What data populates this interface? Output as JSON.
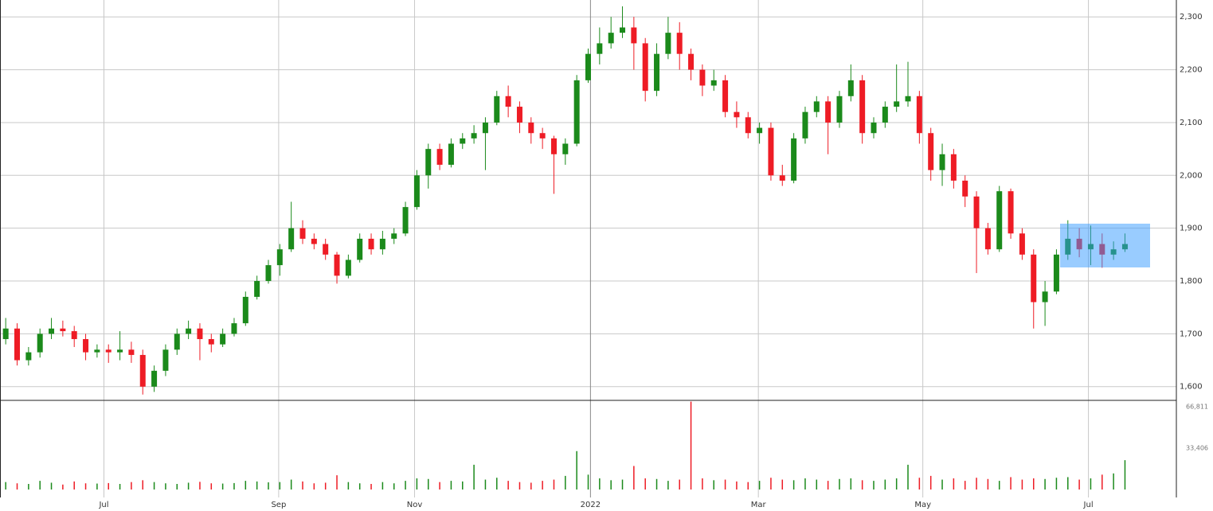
{
  "chart_data": {
    "type": "candlestick",
    "xlim": [
      -0.5,
      102.5
    ],
    "xticks": [
      {
        "value": 8.6,
        "label": "Jul"
      },
      {
        "value": 23.9,
        "label": "Sep"
      },
      {
        "value": 35.8,
        "label": "Nov"
      },
      {
        "value": 51.2,
        "label": "2022"
      },
      {
        "value": 65.9,
        "label": "Mar"
      },
      {
        "value": 80.3,
        "label": "May"
      },
      {
        "value": 94.8,
        "label": "Jul"
      }
    ],
    "ylim": [
      1574,
      2332
    ],
    "yticks": [
      {
        "value": 1600,
        "label": "1,600"
      },
      {
        "value": 1700,
        "label": "1,700"
      },
      {
        "value": 1800,
        "label": "1,800"
      },
      {
        "value": 1900,
        "label": "1,900"
      },
      {
        "value": 2000,
        "label": "2,000"
      },
      {
        "value": 2100,
        "label": "2,100"
      },
      {
        "value": 2200,
        "label": "2,200"
      },
      {
        "value": 2300,
        "label": "2,300"
      }
    ],
    "up_color": "#1b8a1b",
    "down_color": "#ee1c25",
    "grid": true,
    "open": [
      1690,
      1710,
      1650,
      1665,
      1700,
      1710,
      1705,
      1690,
      1665,
      1670,
      1665,
      1670,
      1660,
      1600,
      1630,
      1670,
      1700,
      1710,
      1690,
      1680,
      1700,
      1720,
      1770,
      1800,
      1830,
      1860,
      1900,
      1880,
      1870,
      1850,
      1810,
      1840,
      1880,
      1860,
      1880,
      1890,
      1940,
      2000,
      2050,
      2020,
      2060,
      2070,
      2080,
      2100,
      2150,
      2130,
      2100,
      2080,
      2070,
      2040,
      2060,
      2180,
      2230,
      2250,
      2270,
      2280,
      2250,
      2160,
      2230,
      2270,
      2230,
      2200,
      2170,
      2180,
      2120,
      2110,
      2080,
      2090,
      2000,
      1990,
      2070,
      2120,
      2140,
      2100,
      2150,
      2180,
      2080,
      2100,
      2130,
      2140,
      2150,
      2080,
      2010,
      2040,
      1990,
      1960,
      1900,
      1860,
      1970,
      1890,
      1850,
      1760,
      1780,
      1850,
      1880,
      1860,
      1870,
      1850,
      1860
    ],
    "high": [
      1730,
      1720,
      1675,
      1710,
      1730,
      1725,
      1715,
      1700,
      1680,
      1680,
      1705,
      1685,
      1670,
      1640,
      1680,
      1710,
      1725,
      1720,
      1700,
      1710,
      1730,
      1780,
      1810,
      1840,
      1870,
      1950,
      1915,
      1890,
      1880,
      1855,
      1850,
      1890,
      1890,
      1895,
      1900,
      1950,
      2010,
      2060,
      2060,
      2070,
      2080,
      2095,
      2110,
      2160,
      2170,
      2140,
      2110,
      2090,
      2075,
      2070,
      2190,
      2240,
      2280,
      2300,
      2320,
      2300,
      2260,
      2250,
      2300,
      2290,
      2240,
      2210,
      2200,
      2190,
      2140,
      2120,
      2100,
      2100,
      2020,
      2080,
      2130,
      2150,
      2150,
      2160,
      2210,
      2190,
      2110,
      2140,
      2210,
      2215,
      2160,
      2090,
      2060,
      2050,
      2000,
      1970,
      1910,
      1980,
      1975,
      1900,
      1860,
      1800,
      1860,
      1915,
      1900,
      1905,
      1890,
      1875,
      1890
    ],
    "low": [
      1680,
      1640,
      1640,
      1655,
      1690,
      1695,
      1675,
      1650,
      1655,
      1645,
      1650,
      1645,
      1585,
      1590,
      1620,
      1660,
      1690,
      1650,
      1665,
      1675,
      1695,
      1715,
      1765,
      1795,
      1810,
      1855,
      1870,
      1860,
      1840,
      1795,
      1805,
      1835,
      1850,
      1850,
      1870,
      1885,
      1935,
      1975,
      2010,
      2015,
      2050,
      2060,
      2010,
      2095,
      2110,
      2080,
      2060,
      2050,
      1965,
      2020,
      2055,
      2175,
      2210,
      2240,
      2260,
      2200,
      2140,
      2150,
      2220,
      2200,
      2180,
      2150,
      2160,
      2110,
      2090,
      2070,
      2060,
      1990,
      1980,
      1985,
      2060,
      2110,
      2040,
      2090,
      2140,
      2060,
      2070,
      2090,
      2120,
      2130,
      2060,
      1990,
      1980,
      1975,
      1940,
      1815,
      1850,
      1855,
      1880,
      1840,
      1710,
      1715,
      1775,
      1840,
      1845,
      1830,
      1825,
      1840,
      1855
    ],
    "close": [
      1710,
      1650,
      1665,
      1700,
      1710,
      1705,
      1690,
      1665,
      1670,
      1665,
      1670,
      1660,
      1600,
      1630,
      1670,
      1700,
      1710,
      1690,
      1680,
      1700,
      1720,
      1770,
      1800,
      1830,
      1860,
      1900,
      1880,
      1870,
      1850,
      1810,
      1840,
      1880,
      1860,
      1880,
      1890,
      1940,
      2000,
      2050,
      2020,
      2060,
      2070,
      2080,
      2100,
      2150,
      2130,
      2100,
      2080,
      2070,
      2040,
      2060,
      2180,
      2230,
      2250,
      2270,
      2280,
      2250,
      2160,
      2230,
      2270,
      2230,
      2200,
      2170,
      2180,
      2120,
      2110,
      2080,
      2090,
      2000,
      1990,
      2070,
      2120,
      2140,
      2100,
      2150,
      2180,
      2080,
      2100,
      2130,
      2140,
      2150,
      2080,
      2010,
      2040,
      1990,
      1960,
      1900,
      1860,
      1970,
      1890,
      1850,
      1760,
      1780,
      1850,
      1880,
      1860,
      1870,
      1850,
      1860,
      1870
    ],
    "volume": {
      "ylim": [
        0,
        72000
      ],
      "yticks": [
        {
          "value": 66811,
          "label": "66,811"
        },
        {
          "value": 33406,
          "label": "33,406"
        }
      ],
      "values": [
        6000,
        5000,
        4500,
        7000,
        5500,
        4000,
        6500,
        5000,
        4800,
        5200,
        4500,
        6000,
        7500,
        6000,
        5000,
        4500,
        5500,
        6200,
        5000,
        4800,
        5200,
        7000,
        6500,
        5800,
        6000,
        8000,
        6500,
        5000,
        5500,
        11500,
        6000,
        5000,
        4500,
        6000,
        5000,
        7000,
        9000,
        8500,
        6000,
        7000,
        6500,
        20000,
        8000,
        9500,
        7000,
        6000,
        5500,
        7000,
        8000,
        11000,
        31000,
        12000,
        9000,
        7500,
        8000,
        19000,
        9000,
        8500,
        7000,
        8000,
        71000,
        9000,
        7500,
        8000,
        6500,
        6000,
        7000,
        9500,
        8000,
        7500,
        9000,
        8000,
        7000,
        8500,
        9000,
        7500,
        7000,
        8000,
        9000,
        20000,
        9500,
        11000,
        8000,
        9000,
        7000,
        9500,
        8500,
        7000,
        10000,
        8000,
        9000,
        8500,
        9500,
        10000,
        8000,
        9000,
        12000,
        13000,
        23700
      ]
    }
  }
}
